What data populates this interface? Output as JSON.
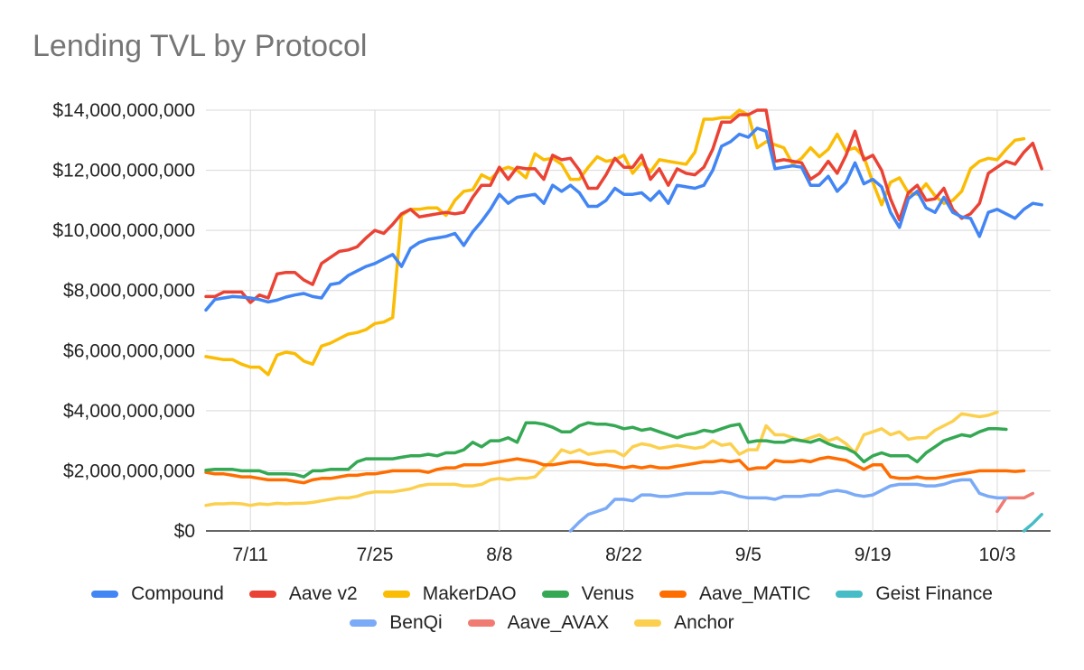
{
  "chart_data": {
    "type": "line",
    "title": "Lending TVL by Protocol",
    "xlabel": "",
    "ylabel": "",
    "x_start": "2021-07-06",
    "x_tick_labels": [
      {
        "label": "7/11",
        "day": 5
      },
      {
        "label": "7/25",
        "day": 19
      },
      {
        "label": "8/8",
        "day": 33
      },
      {
        "label": "8/22",
        "day": 47
      },
      {
        "label": "9/5",
        "day": 61
      },
      {
        "label": "9/19",
        "day": 75
      },
      {
        "label": "10/3",
        "day": 89
      }
    ],
    "xlim": [
      0,
      95
    ],
    "ylim": [
      0,
      14000000000
    ],
    "y_ticks": [
      0,
      2000000000,
      4000000000,
      6000000000,
      8000000000,
      10000000000,
      12000000000,
      14000000000
    ],
    "y_tick_labels": [
      "$0",
      "$2,000,000,000",
      "$4,000,000,000",
      "$6,000,000,000",
      "$8,000,000,000",
      "$10,000,000,000",
      "$12,000,000,000",
      "$14,000,000,000"
    ],
    "grid": true,
    "legend_position": "bottom",
    "series": [
      {
        "name": "Compound",
        "color": "#4285f4",
        "start": 0,
        "values": [
          7.35,
          7.7,
          7.75,
          7.8,
          7.78,
          7.75,
          7.7,
          7.62,
          7.68,
          7.78,
          7.85,
          7.9,
          7.8,
          7.75,
          8.2,
          8.25,
          8.5,
          8.65,
          8.8,
          8.9,
          9.05,
          9.2,
          8.8,
          9.4,
          9.6,
          9.7,
          9.75,
          9.8,
          9.9,
          9.5,
          9.95,
          10.3,
          10.7,
          11.2,
          10.9,
          11.1,
          11.15,
          11.2,
          10.9,
          11.5,
          11.3,
          11.5,
          11.25,
          10.8,
          10.8,
          11.0,
          11.4,
          11.2,
          11.2,
          11.25,
          11.0,
          11.3,
          10.9,
          11.5,
          11.45,
          11.4,
          11.5,
          12.0,
          12.8,
          12.95,
          13.2,
          13.1,
          13.4,
          13.3,
          12.05,
          12.1,
          12.15,
          12.1,
          11.5,
          11.5,
          11.8,
          11.3,
          11.6,
          12.25,
          11.55,
          11.7,
          11.45,
          10.6,
          10.1,
          11.05,
          11.3,
          10.75,
          10.6,
          11.1,
          10.6,
          10.45,
          10.4,
          9.8,
          10.6,
          10.7,
          10.55,
          10.4,
          10.7,
          10.9,
          10.85
        ]
      },
      {
        "name": "Aave v2",
        "color": "#ea4335",
        "start": 0,
        "values": [
          7.8,
          7.8,
          7.95,
          7.95,
          7.95,
          7.6,
          7.85,
          7.75,
          8.55,
          8.6,
          8.6,
          8.35,
          8.2,
          8.9,
          9.1,
          9.3,
          9.35,
          9.45,
          9.75,
          10.0,
          9.9,
          10.2,
          10.55,
          10.7,
          10.45,
          10.5,
          10.55,
          10.6,
          10.55,
          10.6,
          11.1,
          11.5,
          11.5,
          12.1,
          11.7,
          12.1,
          12.05,
          12.05,
          11.7,
          12.5,
          12.35,
          12.4,
          12.0,
          11.4,
          11.4,
          11.85,
          12.4,
          12.1,
          12.1,
          12.5,
          11.7,
          12.05,
          11.5,
          12.05,
          11.9,
          11.85,
          12.1,
          12.7,
          13.6,
          13.6,
          13.85,
          13.85,
          14.2,
          14.2,
          12.3,
          12.35,
          12.3,
          12.25,
          11.7,
          11.9,
          12.3,
          11.9,
          12.5,
          13.3,
          12.35,
          12.5,
          12.0,
          11.05,
          10.35,
          11.25,
          11.5,
          11.0,
          11.05,
          11.4,
          10.7,
          10.4,
          10.55,
          10.9,
          11.9,
          12.1,
          12.3,
          12.2,
          12.6,
          12.9,
          12.05
        ]
      },
      {
        "name": "MakerDAO",
        "color": "#fbbc04",
        "start": 0,
        "values": [
          5.8,
          5.75,
          5.7,
          5.7,
          5.55,
          5.45,
          5.45,
          5.2,
          5.85,
          5.95,
          5.9,
          5.65,
          5.55,
          6.15,
          6.25,
          6.4,
          6.55,
          6.6,
          6.7,
          6.9,
          6.95,
          7.1,
          10.5,
          10.7,
          10.7,
          10.75,
          10.75,
          10.5,
          11.0,
          11.3,
          11.35,
          11.85,
          11.7,
          12.0,
          12.1,
          12.0,
          11.75,
          12.55,
          12.35,
          12.4,
          12.2,
          11.7,
          11.7,
          12.1,
          12.45,
          12.3,
          12.35,
          12.5,
          11.9,
          12.25,
          11.95,
          12.35,
          12.3,
          12.25,
          12.2,
          12.6,
          13.7,
          13.7,
          13.75,
          13.75,
          14.0,
          13.85,
          12.75,
          12.95,
          12.85,
          12.75,
          12.2,
          12.4,
          12.75,
          12.45,
          12.7,
          13.2,
          12.65,
          12.75,
          12.45,
          11.6,
          10.85,
          11.6,
          11.75,
          11.25,
          11.2,
          11.55,
          11.15,
          10.9,
          11.0,
          11.3,
          12.05,
          12.3,
          12.4,
          12.35,
          12.7,
          13.0,
          13.05
        ]
      },
      {
        "name": "Venus",
        "color": "#34a853",
        "start": 0,
        "values": [
          2.02,
          2.05,
          2.05,
          2.05,
          2.0,
          2.0,
          2.0,
          1.9,
          1.9,
          1.9,
          1.88,
          1.8,
          2.0,
          2.0,
          2.05,
          2.05,
          2.05,
          2.3,
          2.4,
          2.4,
          2.4,
          2.4,
          2.45,
          2.5,
          2.5,
          2.55,
          2.5,
          2.6,
          2.6,
          2.7,
          2.95,
          2.8,
          3.0,
          3.0,
          3.1,
          2.95,
          3.6,
          3.6,
          3.55,
          3.45,
          3.3,
          3.3,
          3.5,
          3.6,
          3.55,
          3.55,
          3.5,
          3.4,
          3.45,
          3.35,
          3.4,
          3.3,
          3.2,
          3.1,
          3.2,
          3.25,
          3.35,
          3.3,
          3.4,
          3.5,
          3.55,
          2.95,
          3.0,
          3.0,
          2.95,
          2.95,
          3.05,
          3.0,
          2.95,
          3.05,
          2.9,
          2.8,
          2.75,
          2.6,
          2.3,
          2.5,
          2.6,
          2.5,
          2.5,
          2.5,
          2.3,
          2.6,
          2.8,
          3.0,
          3.1,
          3.2,
          3.15,
          3.3,
          3.4,
          3.4,
          3.38
        ]
      },
      {
        "name": "Aave_MATIC",
        "color": "#ff6d01",
        "start": 0,
        "values": [
          1.95,
          1.9,
          1.9,
          1.85,
          1.8,
          1.8,
          1.75,
          1.7,
          1.7,
          1.7,
          1.65,
          1.6,
          1.7,
          1.75,
          1.75,
          1.8,
          1.85,
          1.85,
          1.9,
          1.9,
          1.95,
          2.0,
          2.0,
          2.0,
          2.0,
          1.95,
          2.05,
          2.1,
          2.1,
          2.2,
          2.2,
          2.2,
          2.25,
          2.3,
          2.35,
          2.4,
          2.35,
          2.3,
          2.2,
          2.2,
          2.25,
          2.3,
          2.3,
          2.25,
          2.2,
          2.2,
          2.15,
          2.1,
          2.15,
          2.1,
          2.15,
          2.1,
          2.1,
          2.15,
          2.2,
          2.25,
          2.3,
          2.3,
          2.35,
          2.3,
          2.35,
          2.05,
          2.1,
          2.1,
          2.35,
          2.3,
          2.3,
          2.35,
          2.3,
          2.4,
          2.45,
          2.4,
          2.35,
          2.2,
          2.05,
          2.2,
          2.2,
          1.8,
          1.75,
          1.75,
          1.8,
          1.75,
          1.75,
          1.8,
          1.85,
          1.9,
          1.95,
          2.0,
          2.0,
          2.0,
          2.0,
          1.98,
          2.0
        ]
      },
      {
        "name": "Geist Finance",
        "color": "#46bdc6",
        "start": 92,
        "values": [
          0.0,
          0.25,
          0.55
        ]
      },
      {
        "name": "BenQi",
        "color": "#7baaf7",
        "start": 41,
        "values": [
          0.0,
          0.3,
          0.55,
          0.65,
          0.75,
          1.05,
          1.05,
          1.0,
          1.2,
          1.2,
          1.15,
          1.15,
          1.2,
          1.25,
          1.25,
          1.25,
          1.25,
          1.3,
          1.25,
          1.15,
          1.1,
          1.1,
          1.1,
          1.05,
          1.15,
          1.15,
          1.15,
          1.2,
          1.2,
          1.3,
          1.35,
          1.3,
          1.2,
          1.15,
          1.2,
          1.35,
          1.5,
          1.55,
          1.55,
          1.55,
          1.5,
          1.5,
          1.55,
          1.65,
          1.7,
          1.7,
          1.25,
          1.15,
          1.1,
          1.1
        ]
      },
      {
        "name": "Aave_AVAX",
        "color": "#f07b72",
        "start": 89,
        "values": [
          0.65,
          1.1,
          1.1,
          1.1,
          1.25
        ]
      },
      {
        "name": "Anchor",
        "color": "#fcd04f",
        "start": 0,
        "values": [
          0.85,
          0.9,
          0.9,
          0.92,
          0.9,
          0.85,
          0.9,
          0.88,
          0.92,
          0.9,
          0.92,
          0.92,
          0.95,
          1.0,
          1.05,
          1.1,
          1.1,
          1.15,
          1.25,
          1.3,
          1.3,
          1.3,
          1.35,
          1.4,
          1.5,
          1.55,
          1.55,
          1.55,
          1.55,
          1.5,
          1.5,
          1.55,
          1.7,
          1.75,
          1.7,
          1.75,
          1.75,
          1.8,
          2.1,
          2.35,
          2.7,
          2.6,
          2.7,
          2.55,
          2.6,
          2.65,
          2.65,
          2.5,
          2.8,
          2.9,
          2.85,
          2.75,
          2.8,
          2.85,
          2.8,
          2.75,
          2.8,
          3.0,
          2.85,
          2.9,
          2.55,
          2.7,
          2.7,
          3.5,
          3.2,
          3.2,
          3.1,
          3.0,
          3.1,
          3.2,
          3.0,
          3.1,
          2.9,
          2.6,
          3.2,
          3.3,
          3.4,
          3.2,
          3.3,
          3.05,
          3.1,
          3.1,
          3.35,
          3.5,
          3.65,
          3.9,
          3.85,
          3.8,
          3.85,
          3.95
        ]
      }
    ]
  }
}
